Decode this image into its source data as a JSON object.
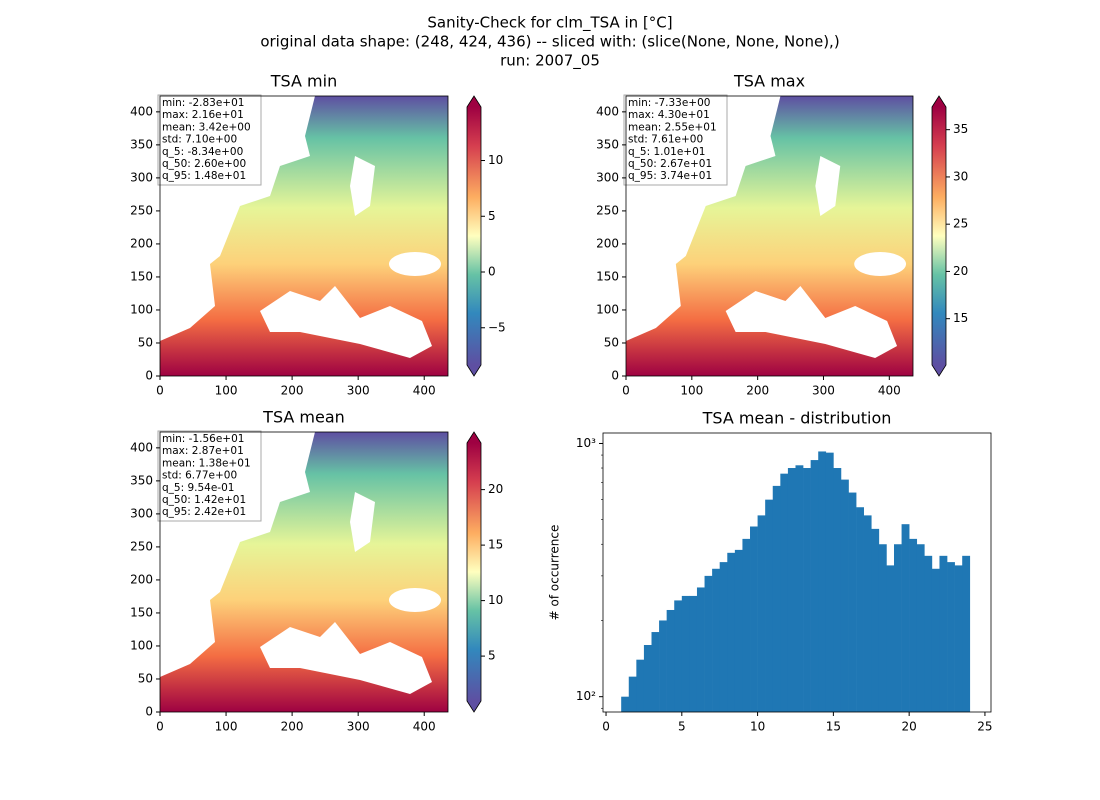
{
  "title": [
    "Sanity-Check for clm_TSA in [°C]",
    "original data shape: (248, 424, 436) -- sliced with: (slice(None, None, None),)",
    "run: 2007_05"
  ],
  "chart_data": [
    {
      "type": "heatmap",
      "title": "TSA min",
      "xlim": [
        0,
        436
      ],
      "ylim": [
        0,
        424
      ],
      "xticks": [
        0,
        100,
        200,
        300,
        400
      ],
      "yticks": [
        0,
        50,
        100,
        150,
        200,
        250,
        300,
        350,
        400
      ],
      "stats": [
        "min: -2.83e+01",
        "max: 2.16e+01",
        "mean: 3.42e+00",
        "std: 7.10e+00",
        "q_5: -8.34e+00",
        "q_50: 2.60e+00",
        "q_95: 1.48e+01"
      ],
      "colorbar": {
        "clim": [
          -8.34,
          14.8
        ],
        "ticks": [
          {
            "value": -5,
            "label": "−5"
          },
          0,
          5,
          10
        ]
      }
    },
    {
      "type": "heatmap",
      "title": "TSA max",
      "xlim": [
        0,
        436
      ],
      "ylim": [
        0,
        424
      ],
      "xticks": [
        0,
        100,
        200,
        300,
        400
      ],
      "yticks": [
        0,
        50,
        100,
        150,
        200,
        250,
        300,
        350,
        400
      ],
      "stats": [
        "min: -7.33e+00",
        "max: 4.30e+01",
        "mean: 2.55e+01",
        "std: 7.61e+00",
        "q_5: 1.01e+01",
        "q_50: 2.67e+01",
        "q_95: 3.74e+01"
      ],
      "colorbar": {
        "clim": [
          10.1,
          37.4
        ],
        "ticks": [
          15,
          20,
          25,
          30,
          35
        ]
      }
    },
    {
      "type": "heatmap",
      "title": "TSA mean",
      "xlim": [
        0,
        436
      ],
      "ylim": [
        0,
        424
      ],
      "xticks": [
        0,
        100,
        200,
        300,
        400
      ],
      "yticks": [
        0,
        50,
        100,
        150,
        200,
        250,
        300,
        350,
        400
      ],
      "stats": [
        "min: -1.56e+01",
        "max: 2.87e+01",
        "mean: 1.38e+01",
        "std: 6.77e+00",
        "q_5: 9.54e-01",
        "q_50: 1.42e+01",
        "q_95: 2.42e+01"
      ],
      "colorbar": {
        "clim": [
          0.954,
          24.2
        ],
        "ticks": [
          5,
          10,
          15,
          20
        ]
      }
    },
    {
      "type": "histogram",
      "title": "TSA mean - distribution",
      "ylabel": "# of occurrence",
      "color": "#1f77b4",
      "log_y": true,
      "bins": [
        1,
        1.5,
        2,
        2.5,
        3,
        3.5,
        4,
        4.5,
        5,
        5.5,
        6,
        6.5,
        7,
        7.5,
        8,
        8.5,
        9,
        9.5,
        10,
        10.5,
        11,
        11.5,
        12,
        12.5,
        13,
        13.5,
        14,
        14.5,
        15,
        15.5,
        16,
        16.5,
        17,
        17.5,
        18,
        18.5,
        19,
        19.5,
        20,
        20.5,
        21,
        21.5,
        22,
        22.5,
        23,
        23.5,
        24
      ],
      "counts": [
        100,
        120,
        140,
        160,
        180,
        200,
        220,
        240,
        250,
        250,
        270,
        300,
        320,
        340,
        370,
        380,
        420,
        470,
        520,
        600,
        680,
        760,
        800,
        820,
        800,
        860,
        930,
        920,
        800,
        720,
        640,
        560,
        520,
        460,
        400,
        330,
        400,
        480,
        420,
        400,
        360,
        320,
        360,
        340,
        330,
        360
      ],
      "xlim": [
        -0.2,
        25.4
      ],
      "ylim": [
        87,
        1100
      ],
      "xticks": [
        0,
        5,
        10,
        15,
        20,
        25
      ],
      "yticks": [
        {
          "value": 100,
          "label": "10²"
        },
        {
          "value": 1000,
          "label": "10³"
        }
      ]
    }
  ]
}
